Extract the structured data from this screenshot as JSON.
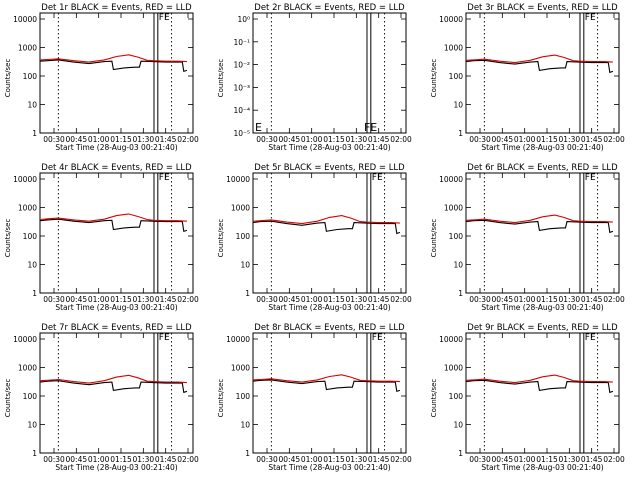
{
  "window_title": "",
  "chart_data": [
    {
      "type": "line",
      "title": "Det 1r BLACK = Events, RED = LLD",
      "xlabel": "Start Time (28-Aug-03 00:21:40)",
      "ylabel": "Counts/sec",
      "scale": "log",
      "yticks": [
        "1",
        "10",
        "100",
        "1000",
        "10000"
      ],
      "ylim": [
        1,
        13000
      ],
      "xticks": [
        "00:30",
        "00:45",
        "01:00",
        "01:15",
        "01:30",
        "01:45",
        "02:00"
      ],
      "series": [
        {
          "name": "Events",
          "color": "#000000",
          "x": [
            0,
            0.05,
            0.12,
            0.22,
            0.32,
            0.42,
            0.47,
            0.48,
            0.55,
            0.62,
            0.65,
            0.66,
            0.74,
            0.82,
            0.9,
            0.93,
            0.94,
            0.96
          ],
          "y": [
            290,
            300,
            320,
            270,
            240,
            280,
            290,
            150,
            170,
            180,
            180,
            290,
            280,
            270,
            270,
            270,
            130,
            140
          ]
        },
        {
          "name": "LLD",
          "color": "#dd0000",
          "x": [
            0,
            0.05,
            0.12,
            0.22,
            0.32,
            0.42,
            0.5,
            0.58,
            0.64,
            0.7,
            0.74,
            0.82,
            0.9,
            0.96
          ],
          "y": [
            320,
            330,
            350,
            300,
            270,
            320,
            420,
            480,
            400,
            310,
            300,
            290,
            290,
            280
          ]
        }
      ],
      "markers": {
        "dotted": [
          0.12,
          0.86
        ],
        "solid": [
          0.745,
          0.77
        ]
      },
      "labels": [
        "FE"
      ],
      "label_pos": "above-markers"
    },
    {
      "type": "line",
      "title": "Det 2r BLACK = Events, RED = LLD",
      "xlabel": "Start Time (28-Aug-03 00:21:40)",
      "ylabel": "Counts/sec",
      "scale": "log",
      "yticks": [
        "10⁻⁵",
        "10⁻⁴",
        "10⁻³",
        "10⁻²",
        "10⁻¹",
        "10⁰"
      ],
      "xticks": [
        "00:30",
        "00:45",
        "01:00",
        "01:15",
        "01:30",
        "01:45",
        "02:00"
      ],
      "series": [],
      "markers": {
        "dotted": [
          0.12,
          0.86
        ],
        "solid": [
          0.745,
          0.77
        ]
      },
      "labels": [
        "FE",
        "E"
      ],
      "label_pos": "bottom"
    },
    {
      "type": "line",
      "title": "Det 3r BLACK = Events, RED = LLD",
      "xlabel": "Start Time (28-Aug-03 00:21:40)",
      "ylabel": "Counts/sec",
      "scale": "log",
      "yticks": [
        "1",
        "10",
        "100",
        "1000",
        "10000"
      ],
      "ylim": [
        1,
        13000
      ],
      "xticks": [
        "00:30",
        "00:45",
        "01:00",
        "01:15",
        "01:30",
        "01:45",
        "02:00"
      ],
      "series": [
        {
          "name": "Events",
          "color": "#000000",
          "x": [
            0,
            0.05,
            0.12,
            0.22,
            0.32,
            0.42,
            0.47,
            0.48,
            0.55,
            0.62,
            0.65,
            0.66,
            0.74,
            0.82,
            0.9,
            0.93,
            0.94,
            0.96
          ],
          "y": [
            280,
            300,
            310,
            260,
            230,
            270,
            280,
            140,
            160,
            170,
            170,
            280,
            270,
            260,
            260,
            260,
            120,
            130
          ]
        },
        {
          "name": "LLD",
          "color": "#dd0000",
          "x": [
            0,
            0.05,
            0.12,
            0.22,
            0.32,
            0.42,
            0.5,
            0.58,
            0.64,
            0.7,
            0.74,
            0.82,
            0.9,
            0.96
          ],
          "y": [
            310,
            320,
            340,
            290,
            260,
            310,
            410,
            470,
            390,
            300,
            290,
            280,
            280,
            270
          ]
        }
      ],
      "markers": {
        "dotted": [
          0.12,
          0.86
        ],
        "solid": [
          0.745,
          0.77
        ]
      },
      "labels": [
        "FE"
      ],
      "label_pos": "above-markers"
    },
    {
      "type": "line",
      "title": "Det 4r BLACK = Events, RED = LLD",
      "xlabel": "Start Time (28-Aug-03 00:21:40)",
      "ylabel": "Counts/sec",
      "scale": "log",
      "yticks": [
        "1",
        "10",
        "100",
        "1000",
        "10000"
      ],
      "ylim": [
        1,
        13000
      ],
      "xticks": [
        "00:30",
        "00:45",
        "01:00",
        "01:15",
        "01:30",
        "01:45",
        "02:00"
      ],
      "series": [
        {
          "name": "Events",
          "color": "#000000",
          "x": [
            0,
            0.05,
            0.12,
            0.22,
            0.32,
            0.42,
            0.47,
            0.48,
            0.55,
            0.62,
            0.65,
            0.66,
            0.74,
            0.82,
            0.9,
            0.93,
            0.94,
            0.96
          ],
          "y": [
            300,
            320,
            340,
            290,
            260,
            300,
            310,
            150,
            170,
            180,
            180,
            300,
            290,
            280,
            280,
            280,
            130,
            140
          ]
        },
        {
          "name": "LLD",
          "color": "#dd0000",
          "x": [
            0,
            0.05,
            0.12,
            0.22,
            0.32,
            0.42,
            0.5,
            0.58,
            0.64,
            0.7,
            0.74,
            0.82,
            0.9,
            0.96
          ],
          "y": [
            330,
            350,
            370,
            320,
            290,
            340,
            450,
            510,
            420,
            330,
            310,
            300,
            300,
            290
          ]
        }
      ],
      "markers": {
        "dotted": [
          0.12,
          0.86
        ],
        "solid": [
          0.745,
          0.77
        ]
      },
      "labels": [
        "FE"
      ],
      "label_pos": "above-markers"
    },
    {
      "type": "line",
      "title": "Det 5r BLACK = Events, RED = LLD",
      "xlabel": "Start Time (28-Aug-03 00:21:40)",
      "ylabel": "Counts/sec",
      "scale": "log",
      "yticks": [
        "1",
        "10",
        "100",
        "1000",
        "10000"
      ],
      "ylim": [
        1,
        13000
      ],
      "xticks": [
        "00:30",
        "00:45",
        "01:00",
        "01:15",
        "01:30",
        "01:45",
        "02:00"
      ],
      "series": [
        {
          "name": "Events",
          "color": "#000000",
          "x": [
            0,
            0.05,
            0.12,
            0.22,
            0.32,
            0.42,
            0.47,
            0.48,
            0.55,
            0.62,
            0.65,
            0.66,
            0.74,
            0.82,
            0.9,
            0.93,
            0.94,
            0.96
          ],
          "y": [
            260,
            280,
            290,
            240,
            210,
            250,
            260,
            130,
            150,
            160,
            160,
            260,
            250,
            240,
            240,
            240,
            110,
            120
          ]
        },
        {
          "name": "LLD",
          "color": "#dd0000",
          "x": [
            0,
            0.05,
            0.12,
            0.22,
            0.32,
            0.42,
            0.5,
            0.58,
            0.64,
            0.7,
            0.74,
            0.82,
            0.9,
            0.96
          ],
          "y": [
            290,
            300,
            320,
            270,
            240,
            290,
            390,
            450,
            370,
            280,
            270,
            260,
            260,
            250
          ]
        }
      ],
      "markers": {
        "dotted": [
          0.12,
          0.86
        ],
        "solid": [
          0.745,
          0.77
        ]
      },
      "labels": [
        "FE"
      ],
      "label_pos": "above-markers"
    },
    {
      "type": "line",
      "title": "Det 6r BLACK = Events, RED = LLD",
      "xlabel": "Start Time (28-Aug-03 00:21:40)",
      "ylabel": "Counts/sec",
      "scale": "log",
      "yticks": [
        "1",
        "10",
        "100",
        "1000",
        "10000"
      ],
      "ylim": [
        1,
        13000
      ],
      "xticks": [
        "00:30",
        "00:45",
        "01:00",
        "01:15",
        "01:30",
        "01:45",
        "02:00"
      ],
      "series": [
        {
          "name": "Events",
          "color": "#000000",
          "x": [
            0,
            0.05,
            0.12,
            0.22,
            0.32,
            0.42,
            0.47,
            0.48,
            0.55,
            0.62,
            0.65,
            0.66,
            0.74,
            0.82,
            0.9,
            0.93,
            0.94,
            0.96
          ],
          "y": [
            280,
            300,
            310,
            260,
            230,
            270,
            280,
            140,
            160,
            170,
            170,
            280,
            270,
            260,
            260,
            260,
            120,
            130
          ]
        },
        {
          "name": "LLD",
          "color": "#dd0000",
          "x": [
            0,
            0.05,
            0.12,
            0.22,
            0.32,
            0.42,
            0.5,
            0.58,
            0.64,
            0.7,
            0.74,
            0.82,
            0.9,
            0.96
          ],
          "y": [
            310,
            320,
            340,
            290,
            260,
            310,
            410,
            470,
            390,
            300,
            290,
            280,
            280,
            270
          ]
        }
      ],
      "markers": {
        "dotted": [
          0.12,
          0.86
        ],
        "solid": [
          0.745,
          0.77
        ]
      },
      "labels": [
        "FE"
      ],
      "label_pos": "above-markers"
    },
    {
      "type": "line",
      "title": "Det 7r BLACK = Events, RED = LLD",
      "xlabel": "Start Time (28-Aug-03 00:21:40)",
      "ylabel": "Counts/sec",
      "scale": "log",
      "yticks": [
        "1",
        "10",
        "100",
        "1000",
        "10000"
      ],
      "ylim": [
        1,
        13000
      ],
      "xticks": [
        "00:30",
        "00:45",
        "01:00",
        "01:15",
        "01:30",
        "01:45",
        "02:00"
      ],
      "series": [
        {
          "name": "Events",
          "color": "#000000",
          "x": [
            0,
            0.05,
            0.12,
            0.22,
            0.32,
            0.42,
            0.47,
            0.48,
            0.55,
            0.62,
            0.65,
            0.66,
            0.74,
            0.82,
            0.9,
            0.93,
            0.94,
            0.96
          ],
          "y": [
            270,
            290,
            300,
            250,
            220,
            260,
            270,
            140,
            160,
            170,
            170,
            270,
            260,
            250,
            250,
            250,
            120,
            130
          ]
        },
        {
          "name": "LLD",
          "color": "#dd0000",
          "x": [
            0,
            0.05,
            0.12,
            0.22,
            0.32,
            0.42,
            0.5,
            0.58,
            0.64,
            0.7,
            0.74,
            0.82,
            0.9,
            0.96
          ],
          "y": [
            300,
            310,
            330,
            280,
            250,
            300,
            400,
            460,
            380,
            290,
            280,
            270,
            270,
            260
          ]
        }
      ],
      "markers": {
        "dotted": [
          0.12,
          0.86
        ],
        "solid": [
          0.745,
          0.77
        ]
      },
      "labels": [
        "FE"
      ],
      "label_pos": "above-markers"
    },
    {
      "type": "line",
      "title": "Det 8r BLACK = Events, RED = LLD",
      "xlabel": "Start Time (28-Aug-03 00:21:40)",
      "ylabel": "Counts/sec",
      "scale": "log",
      "yticks": [
        "1",
        "10",
        "100",
        "1000",
        "10000"
      ],
      "ylim": [
        1,
        13000
      ],
      "xticks": [
        "00:30",
        "00:45",
        "01:00",
        "01:15",
        "01:30",
        "01:45",
        "02:00"
      ],
      "series": [
        {
          "name": "Events",
          "color": "#000000",
          "x": [
            0,
            0.05,
            0.12,
            0.22,
            0.32,
            0.42,
            0.47,
            0.48,
            0.55,
            0.62,
            0.65,
            0.66,
            0.74,
            0.82,
            0.9,
            0.93,
            0.94,
            0.96
          ],
          "y": [
            290,
            310,
            320,
            270,
            240,
            280,
            290,
            150,
            170,
            180,
            180,
            290,
            280,
            270,
            270,
            270,
            130,
            140
          ]
        },
        {
          "name": "LLD",
          "color": "#dd0000",
          "x": [
            0,
            0.05,
            0.12,
            0.22,
            0.32,
            0.42,
            0.5,
            0.58,
            0.64,
            0.7,
            0.74,
            0.82,
            0.9,
            0.96
          ],
          "y": [
            320,
            330,
            350,
            300,
            270,
            320,
            420,
            480,
            400,
            310,
            300,
            290,
            290,
            280
          ]
        }
      ],
      "markers": {
        "dotted": [
          0.12,
          0.86
        ],
        "solid": [
          0.745,
          0.77
        ]
      },
      "labels": [
        "FE"
      ],
      "label_pos": "above-markers"
    },
    {
      "type": "line",
      "title": "Det 9r BLACK = Events, RED = LLD",
      "xlabel": "Start Time (28-Aug-03 00:21:40)",
      "ylabel": "Counts/sec",
      "scale": "log",
      "yticks": [
        "1",
        "10",
        "100",
        "1000",
        "10000"
      ],
      "ylim": [
        1,
        13000
      ],
      "xticks": [
        "00:30",
        "00:45",
        "01:00",
        "01:15",
        "01:30",
        "01:45",
        "02:00"
      ],
      "series": [
        {
          "name": "Events",
          "color": "#000000",
          "x": [
            0,
            0.05,
            0.12,
            0.22,
            0.32,
            0.42,
            0.47,
            0.48,
            0.55,
            0.62,
            0.65,
            0.66,
            0.74,
            0.82,
            0.9,
            0.93,
            0.94,
            0.96
          ],
          "y": [
            280,
            300,
            310,
            260,
            230,
            270,
            280,
            140,
            160,
            170,
            170,
            280,
            270,
            260,
            260,
            260,
            120,
            130
          ]
        },
        {
          "name": "LLD",
          "color": "#dd0000",
          "x": [
            0,
            0.05,
            0.12,
            0.22,
            0.32,
            0.42,
            0.5,
            0.58,
            0.64,
            0.7,
            0.74,
            0.82,
            0.9,
            0.96
          ],
          "y": [
            310,
            320,
            340,
            290,
            260,
            310,
            410,
            470,
            390,
            300,
            290,
            280,
            280,
            270
          ]
        }
      ],
      "markers": {
        "dotted": [
          0.12,
          0.86
        ],
        "solid": [
          0.745,
          0.77
        ]
      },
      "labels": [
        "FE"
      ],
      "label_pos": "above-markers"
    }
  ]
}
